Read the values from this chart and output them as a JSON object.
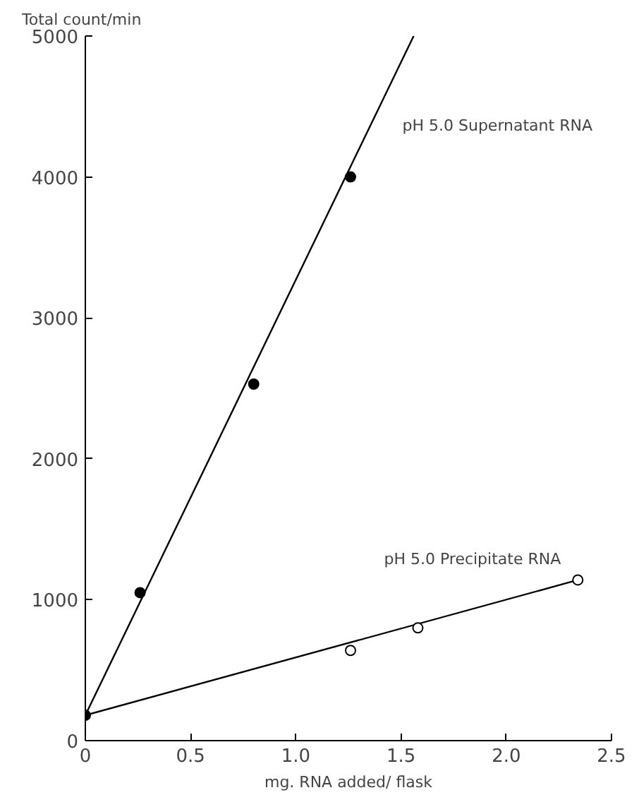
{
  "chart_data": {
    "type": "line",
    "xlabel": "mg. RNA added/ flask",
    "ylabel": "Total count/min",
    "xlim": [
      0,
      2.5
    ],
    "ylim": [
      0,
      5000
    ],
    "xticks": [
      0,
      {
        "value": 0.5,
        "label": "0.5"
      },
      {
        "value": 1.0,
        "label": "1.0"
      },
      {
        "value": 1.5,
        "label": "1.5"
      },
      {
        "value": 2.0,
        "label": "2.0"
      },
      {
        "value": 2.5,
        "label": "2.5"
      }
    ],
    "yticks": [
      0,
      1000,
      2000,
      3000,
      4000,
      5000
    ],
    "grid": false,
    "series": [
      {
        "name": "pH 5.0 Supernatant RNA",
        "color": "#000000",
        "marker": "none",
        "x": [
          0,
          1.56
        ],
        "values": [
          180,
          5000
        ]
      },
      {
        "name": "pH 5.0 Precipitate RNA",
        "color": "#000000",
        "marker": "none",
        "x": [
          0,
          2.34
        ],
        "values": [
          180,
          1140
        ]
      },
      {
        "type": "scatter",
        "marker": "circle",
        "color": "#000000",
        "x": [
          0,
          0.26,
          0.8,
          1.26
        ],
        "values": [
          180,
          1050,
          2530,
          4000
        ]
      },
      {
        "type": "scatter",
        "marker": "circle",
        "color": "#ffffff",
        "x": [
          1.26,
          1.58,
          2.34
        ],
        "values": [
          640,
          800,
          1140
        ]
      }
    ]
  }
}
